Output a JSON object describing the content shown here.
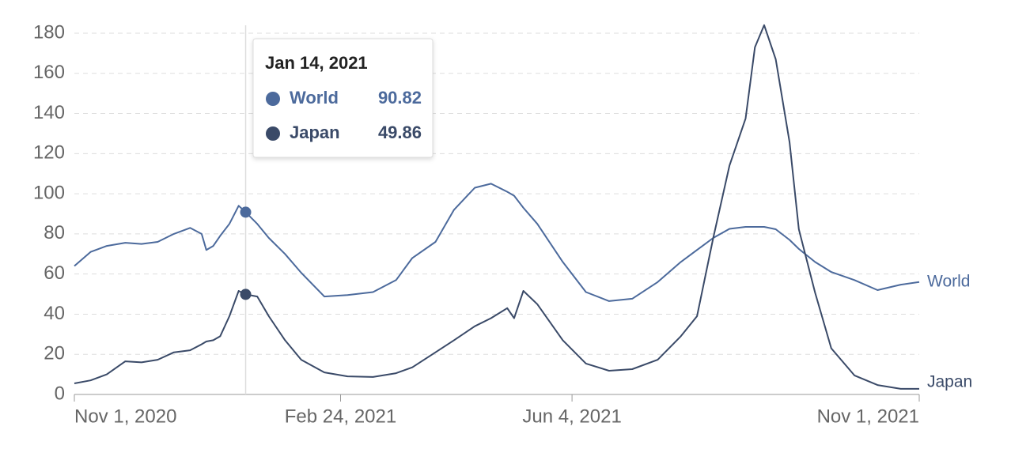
{
  "chart_data": {
    "type": "line",
    "x": [
      "2020-11-01",
      "2020-11-08",
      "2020-11-15",
      "2020-11-23",
      "2020-11-30",
      "2020-12-07",
      "2020-12-14",
      "2020-12-21",
      "2020-12-26",
      "2020-12-28",
      "2020-12-31",
      "2021-01-03",
      "2021-01-07",
      "2021-01-11",
      "2021-01-14",
      "2021-01-19",
      "2021-01-24",
      "2021-01-31",
      "2021-02-07",
      "2021-02-17",
      "2021-02-27",
      "2021-03-10",
      "2021-03-20",
      "2021-03-27",
      "2021-04-06",
      "2021-04-14",
      "2021-04-23",
      "2021-04-30",
      "2021-05-07",
      "2021-05-10",
      "2021-05-14",
      "2021-05-20",
      "2021-05-31",
      "2021-06-10",
      "2021-06-20",
      "2021-06-30",
      "2021-07-11",
      "2021-07-21",
      "2021-07-28",
      "2021-08-04",
      "2021-08-11",
      "2021-08-18",
      "2021-08-22",
      "2021-08-26",
      "2021-08-31",
      "2021-09-06",
      "2021-09-10",
      "2021-09-17",
      "2021-09-24",
      "2021-10-04",
      "2021-10-14",
      "2021-10-24",
      "2021-11-01"
    ],
    "series": [
      {
        "name": "World",
        "color": "#4c6a9c",
        "values": [
          64,
          71,
          74,
          75.6,
          75,
          76,
          80,
          83,
          80,
          72,
          74,
          79,
          85,
          94,
          90.82,
          85,
          78,
          70,
          60.6,
          48.8,
          49.5,
          51,
          57,
          68,
          76,
          92,
          103,
          105,
          101,
          99,
          93,
          85,
          66,
          51,
          46.5,
          47.7,
          56,
          66,
          72,
          78,
          82.5,
          83.5,
          83.5,
          83.5,
          82.3,
          77,
          72.5,
          66,
          61,
          57,
          52,
          54.7,
          56
        ]
      },
      {
        "name": "Japan",
        "color": "#3a4a68",
        "values": [
          5.5,
          7,
          10,
          16.5,
          16,
          17.3,
          21,
          22,
          25,
          26.4,
          27,
          29,
          39,
          51.6,
          49.86,
          48.8,
          39,
          27,
          17.3,
          11,
          9,
          8.7,
          10.6,
          13.5,
          21,
          27,
          34,
          38,
          43,
          38,
          51.6,
          45,
          27,
          15.4,
          11.8,
          12.6,
          17.3,
          29,
          39,
          78,
          114,
          137.5,
          173,
          184,
          167,
          125.6,
          82.3,
          50.8,
          23,
          9.5,
          4.7,
          2.8,
          2.8
        ]
      }
    ],
    "xlim": [
      "2020-11-01",
      "2021-11-01"
    ],
    "xticks": [
      {
        "value": "2020-11-01",
        "label": "Nov 1, 2020"
      },
      {
        "value": "2021-02-24",
        "label": "Feb 24, 2021"
      },
      {
        "value": "2021-06-04",
        "label": "Jun 4, 2021"
      },
      {
        "value": "2021-11-01",
        "label": "Nov 1, 2021"
      }
    ],
    "ylim": [
      0,
      180
    ],
    "yticks": [
      0,
      20,
      40,
      60,
      80,
      100,
      120,
      140,
      160,
      180
    ],
    "grid": true,
    "tooltip": {
      "label": "Jan 14, 2021",
      "x": "2021-01-14",
      "values": [
        90.82,
        49.86
      ]
    }
  }
}
